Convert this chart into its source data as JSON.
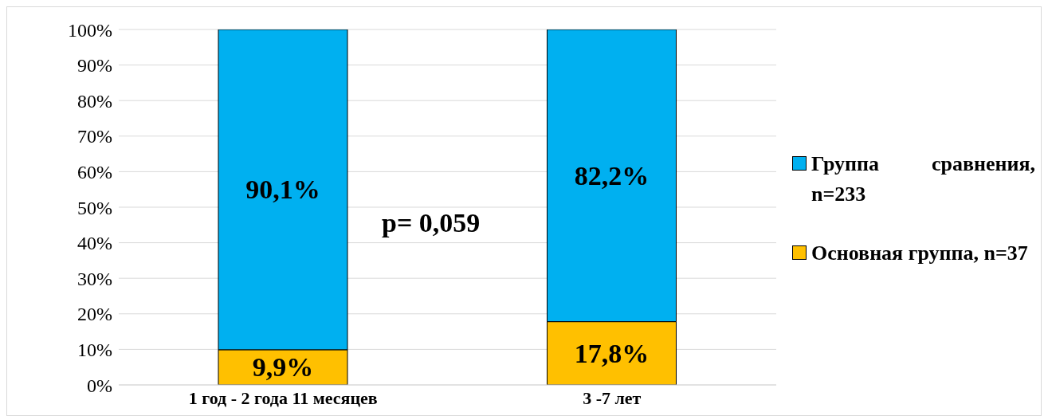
{
  "chart_data": {
    "type": "bar",
    "stacked": true,
    "categories": [
      "1 год - 2 года 11 месяцев",
      "3 -7 лет"
    ],
    "series": [
      {
        "name": "Основная группа, n=37",
        "color": "#ffc000",
        "values": [
          9.9,
          17.8
        ],
        "value_labels": [
          "9,9%",
          "17,8%"
        ]
      },
      {
        "name": "Группа сравнения, n=233",
        "color": "#00b0f0",
        "values": [
          90.1,
          82.2
        ],
        "value_labels": [
          "90,1%",
          "82,2%"
        ]
      }
    ],
    "ylim": [
      0,
      100
    ],
    "yticks": [
      {
        "value": 0,
        "label": "0%"
      },
      {
        "value": 10,
        "label": "10%"
      },
      {
        "value": 20,
        "label": "20%"
      },
      {
        "value": 30,
        "label": "30%"
      },
      {
        "value": 40,
        "label": "40%"
      },
      {
        "value": 50,
        "label": "50%"
      },
      {
        "value": 60,
        "label": "60%"
      },
      {
        "value": 70,
        "label": "70%"
      },
      {
        "value": 80,
        "label": "80%"
      },
      {
        "value": 90,
        "label": "90%"
      },
      {
        "value": 100,
        "label": "100%"
      }
    ],
    "grid": "y",
    "legend": "right",
    "annotations": [
      "p= 0,059"
    ]
  }
}
